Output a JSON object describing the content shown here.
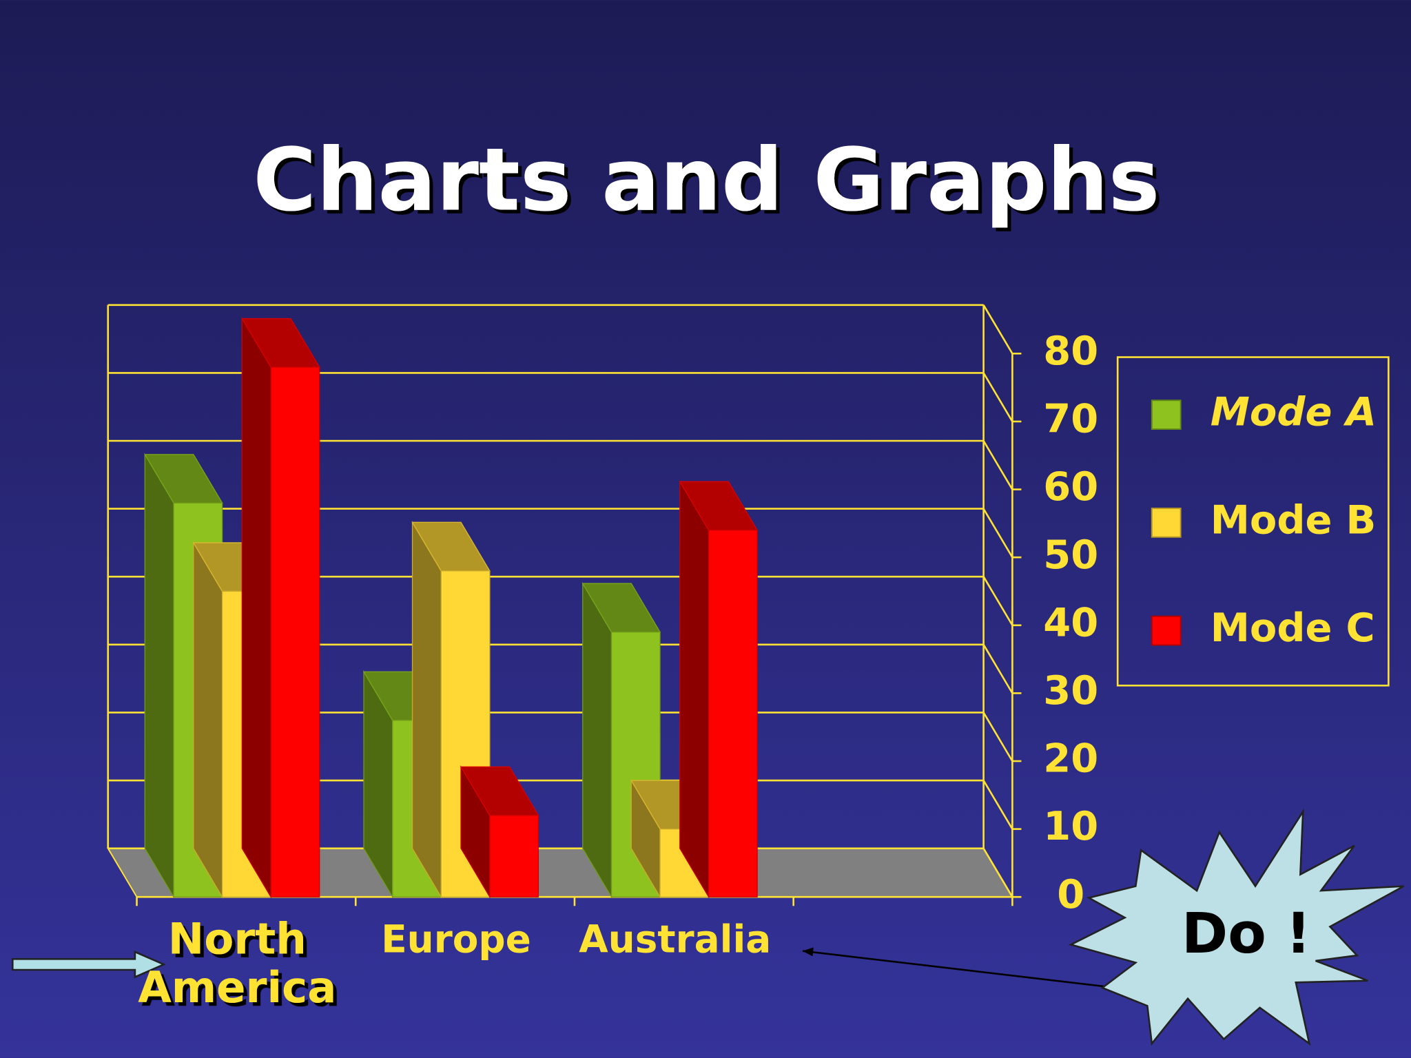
{
  "chart_data": {
    "type": "bar3d",
    "title": "Charts and Graphs",
    "categories": [
      "North America",
      "Europe",
      "Australia"
    ],
    "series": [
      {
        "name": "Mode A",
        "color": "#8dc21f",
        "values": [
          58,
          26,
          39
        ]
      },
      {
        "name": "Mode B",
        "color": "#ffd836",
        "values": [
          45,
          48,
          10
        ]
      },
      {
        "name": "Mode C",
        "color": "#ff0000",
        "values": [
          78,
          12,
          54
        ]
      }
    ],
    "ylim": [
      0,
      80
    ],
    "yticks": [
      0,
      10,
      20,
      30,
      40,
      50,
      60,
      70,
      80
    ],
    "grid": true,
    "legend": "right",
    "callout": "Do !"
  }
}
